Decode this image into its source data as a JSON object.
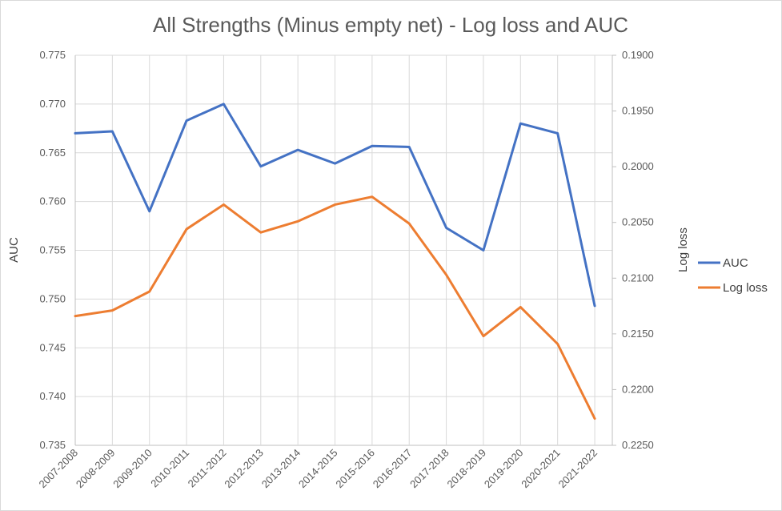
{
  "chart_data": {
    "type": "line",
    "title": "All Strengths (Minus empty net) - Log loss and AUC",
    "xlabel": "",
    "ylabel": "AUC",
    "y2label": "Log loss",
    "categories": [
      "2007-2008",
      "2008-2009",
      "2009-2010",
      "2010-2011",
      "2011-2012",
      "2012-2013",
      "2013-2014",
      "2014-2015",
      "2015-2016",
      "2016-2017",
      "2017-2018",
      "2018-2019",
      "2019-2020",
      "2020-2021",
      "2021-2022"
    ],
    "ylim": [
      0.735,
      0.775
    ],
    "y_ticks": [
      "0.735",
      "0.740",
      "0.745",
      "0.750",
      "0.755",
      "0.760",
      "0.765",
      "0.770",
      "0.775"
    ],
    "y2lim": [
      0.19,
      0.225
    ],
    "y2_reversed": true,
    "y2_ticks": [
      "0.1900",
      "0.1950",
      "0.2000",
      "0.2050",
      "0.2100",
      "0.2150",
      "0.2200",
      "0.2250"
    ],
    "grid": true,
    "legend_position": "right",
    "series": [
      {
        "name": "AUC",
        "axis": "left",
        "color": "#4472C4",
        "values": [
          0.767,
          0.7672,
          0.759,
          0.7683,
          0.77,
          0.7636,
          0.7653,
          0.7639,
          0.7657,
          0.7656,
          0.7573,
          0.755,
          0.768,
          0.767,
          0.7493
        ]
      },
      {
        "name": "Log loss",
        "axis": "right",
        "color": "#ED7D31",
        "values": [
          0.2134,
          0.2129,
          0.2112,
          0.2056,
          0.2034,
          0.2059,
          0.2049,
          0.2034,
          0.2027,
          0.2051,
          0.2097,
          0.2152,
          0.2126,
          0.2159,
          0.2226
        ]
      }
    ]
  }
}
